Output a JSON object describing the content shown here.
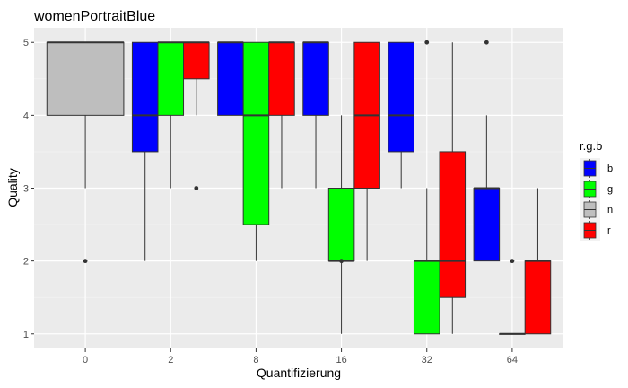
{
  "chart_data": {
    "type": "boxplot",
    "title": "womenPortraitBlue",
    "xlabel": "Quantifizierung",
    "ylabel": "Quality",
    "ylim": [
      0.8,
      5.2
    ],
    "yticks": [
      1,
      2,
      3,
      4,
      5
    ],
    "categories": [
      "0",
      "2",
      "8",
      "16",
      "32",
      "64"
    ],
    "legend": {
      "title": "r.g.b",
      "position": "right",
      "entries": [
        {
          "key": "b",
          "color": "#0000FF"
        },
        {
          "key": "g",
          "color": "#00FF00"
        },
        {
          "key": "n",
          "color": "#BEBEBE"
        },
        {
          "key": "r",
          "color": "#FF0000"
        }
      ]
    },
    "grid": true,
    "boxes": [
      {
        "category": "0",
        "group": "n",
        "slot": 0,
        "slots": 1,
        "lower_whisker": 3,
        "q1": 4,
        "median": 5,
        "q3": 5,
        "upper_whisker": 5,
        "outliers": [
          2
        ]
      },
      {
        "category": "2",
        "group": "b",
        "slot": 0,
        "slots": 3,
        "lower_whisker": 2,
        "q1": 3.5,
        "median": 4,
        "q3": 5,
        "upper_whisker": 5,
        "outliers": []
      },
      {
        "category": "2",
        "group": "g",
        "slot": 1,
        "slots": 3,
        "lower_whisker": 3,
        "q1": 4,
        "median": 5,
        "q3": 5,
        "upper_whisker": 5,
        "outliers": []
      },
      {
        "category": "2",
        "group": "r",
        "slot": 2,
        "slots": 3,
        "lower_whisker": 4,
        "q1": 4.5,
        "median": 5,
        "q3": 5,
        "upper_whisker": 5,
        "outliers": [
          3
        ]
      },
      {
        "category": "8",
        "group": "b",
        "slot": 0,
        "slots": 3,
        "lower_whisker": 4,
        "q1": 4,
        "median": 5,
        "q3": 5,
        "upper_whisker": 5,
        "outliers": []
      },
      {
        "category": "8",
        "group": "g",
        "slot": 1,
        "slots": 3,
        "lower_whisker": 2,
        "q1": 2.5,
        "median": 4,
        "q3": 5,
        "upper_whisker": 5,
        "outliers": []
      },
      {
        "category": "8",
        "group": "r",
        "slot": 2,
        "slots": 3,
        "lower_whisker": 3,
        "q1": 4,
        "median": 5,
        "q3": 5,
        "upper_whisker": 5,
        "outliers": []
      },
      {
        "category": "16",
        "group": "b",
        "slot": 0,
        "slots": 3,
        "lower_whisker": 3,
        "q1": 4,
        "median": 5,
        "q3": 5,
        "upper_whisker": 5,
        "outliers": []
      },
      {
        "category": "16",
        "group": "g",
        "slot": 1,
        "slots": 3,
        "lower_whisker": 1,
        "q1": 2,
        "median": 2,
        "q3": 3,
        "upper_whisker": 4,
        "outliers": [
          2
        ]
      },
      {
        "category": "16",
        "group": "r",
        "slot": 2,
        "slots": 3,
        "lower_whisker": 2,
        "q1": 3,
        "median": 4,
        "q3": 5,
        "upper_whisker": 5,
        "outliers": []
      },
      {
        "category": "32",
        "group": "b",
        "slot": 0,
        "slots": 3,
        "lower_whisker": 3,
        "q1": 3.5,
        "median": 4,
        "q3": 5,
        "upper_whisker": 5,
        "outliers": []
      },
      {
        "category": "32",
        "group": "g",
        "slot": 1,
        "slots": 3,
        "lower_whisker": 1,
        "q1": 1,
        "median": 2,
        "q3": 2,
        "upper_whisker": 3,
        "outliers": [
          5
        ]
      },
      {
        "category": "32",
        "group": "r",
        "slot": 2,
        "slots": 3,
        "lower_whisker": 1,
        "q1": 1.5,
        "median": 2,
        "q3": 3.5,
        "upper_whisker": 5,
        "outliers": []
      },
      {
        "category": "64",
        "group": "b",
        "slot": 0,
        "slots": 3,
        "lower_whisker": 2,
        "q1": 2,
        "median": 3,
        "q3": 3,
        "upper_whisker": 4,
        "outliers": [
          5
        ]
      },
      {
        "category": "64",
        "group": "g",
        "slot": 1,
        "slots": 3,
        "lower_whisker": 1,
        "q1": 1,
        "median": 1,
        "q3": 1,
        "upper_whisker": 1,
        "outliers": [
          2
        ]
      },
      {
        "category": "64",
        "group": "r",
        "slot": 2,
        "slots": 3,
        "lower_whisker": 1,
        "q1": 1,
        "median": 2,
        "q3": 2,
        "upper_whisker": 3,
        "outliers": []
      }
    ]
  }
}
